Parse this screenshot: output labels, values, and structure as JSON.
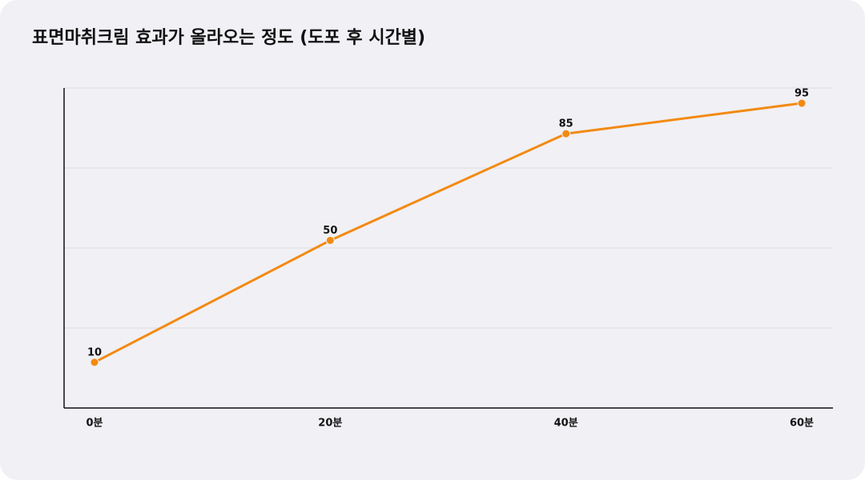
{
  "chart_data": {
    "type": "line",
    "title": "표면마취크림 효과가 올라오는 정도 (도포 후 시간별)",
    "categories": [
      "0분",
      "20분",
      "40분",
      "60분"
    ],
    "values": [
      10,
      50,
      85,
      95
    ],
    "color": "#f28a12",
    "ylim": [
      -5,
      100
    ],
    "grid": true
  }
}
